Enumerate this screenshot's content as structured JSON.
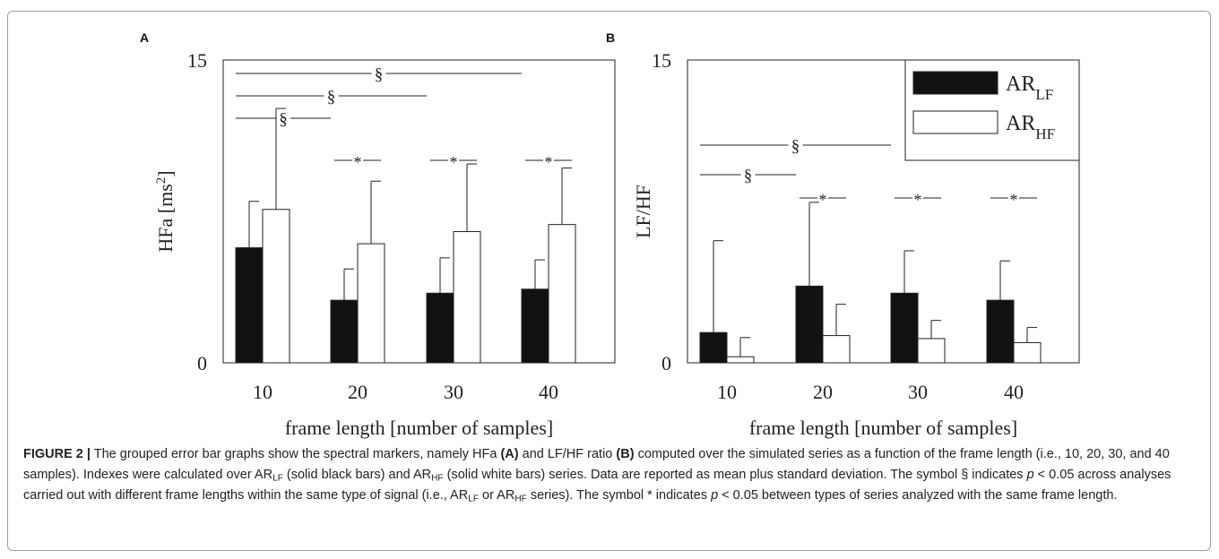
{
  "chart_data": [
    {
      "type": "bar",
      "panel_label": "A",
      "categories": [
        "10",
        "20",
        "30",
        "40"
      ],
      "series": [
        {
          "name": "AR_LF",
          "values": [
            5.7,
            3.1,
            3.45,
            3.65
          ],
          "errors": [
            2.3,
            1.55,
            1.75,
            1.45
          ]
        },
        {
          "name": "AR_HF",
          "values": [
            7.6,
            5.9,
            6.5,
            6.85
          ],
          "errors": [
            5.0,
            3.1,
            3.35,
            2.8
          ]
        }
      ],
      "xlabel": "frame length [number of samples]",
      "ylabel": "HFa [ms",
      "ylabel_sup": "2",
      "ylabel_close": "]",
      "ylim": [
        0,
        15
      ],
      "yticks": [
        "0",
        "15"
      ],
      "grid": false,
      "legend": "none",
      "significance": [
        {
          "symbol": "§",
          "from": "10",
          "to": "40"
        },
        {
          "symbol": "§",
          "from": "10",
          "to": "30"
        },
        {
          "symbol": "§",
          "from": "10",
          "to": "20"
        },
        {
          "symbol": "*",
          "at": "20"
        },
        {
          "symbol": "*",
          "at": "30"
        },
        {
          "symbol": "*",
          "at": "40"
        }
      ]
    },
    {
      "type": "bar",
      "panel_label": "B",
      "categories": [
        "10",
        "20",
        "30",
        "40"
      ],
      "series": [
        {
          "name": "AR_LF",
          "values": [
            1.5,
            3.8,
            3.45,
            3.1
          ],
          "errors": [
            4.55,
            4.15,
            2.1,
            1.95
          ]
        },
        {
          "name": "AR_HF",
          "values": [
            0.3,
            1.35,
            1.2,
            1.0
          ],
          "errors": [
            0.95,
            1.55,
            0.9,
            0.75
          ]
        }
      ],
      "xlabel": "frame length [number of samples]",
      "ylabel": "LF/HF",
      "ylim": [
        0,
        15
      ],
      "yticks": [
        "0",
        "15"
      ],
      "grid": false,
      "legend": "top-right",
      "legend_entries": [
        {
          "base": "AR",
          "sub": "LF"
        },
        {
          "base": "AR",
          "sub": "HF"
        }
      ],
      "significance": [
        {
          "symbol": "§",
          "from": "10",
          "to": "30"
        },
        {
          "symbol": "§",
          "from": "10",
          "to": "20"
        },
        {
          "symbol": "*",
          "at": "20"
        },
        {
          "symbol": "*",
          "at": "30"
        },
        {
          "symbol": "*",
          "at": "40"
        }
      ]
    }
  ],
  "caption": {
    "figure_label": "FIGURE 2 |",
    "p1": " The grouped error bar graphs show the spectral markers, namely HFa ",
    "ref_a": "(A)",
    "p2": " and LF/HF ratio ",
    "ref_b": "(B)",
    "p3": " computed over the simulated series as a function of the frame length (i.e., 10, 20, 30, and 40 samples). Indexes were calculated over AR",
    "sub_lf_1": "LF",
    "p4": " (solid black bars) and AR",
    "sub_hf_1": "HF",
    "p5": " (solid white bars) series. Data are reported as mean plus standard deviation. The symbol § indicates ",
    "p_var_1": "p",
    "p6": " < 0.05 across analyses carried out with different frame lengths within the same type of signal (i.e., AR",
    "sub_lf_2": "LF",
    "p7": " or AR",
    "sub_hf_2": "HF",
    "p8": " series). The symbol * indicates ",
    "p_var_2": "p",
    "p9": " < 0.05 between types of series analyzed with the same frame length."
  },
  "colors": {
    "lf_bar": "#111111",
    "hf_bar": "#ffffff",
    "axis": "#222222"
  }
}
